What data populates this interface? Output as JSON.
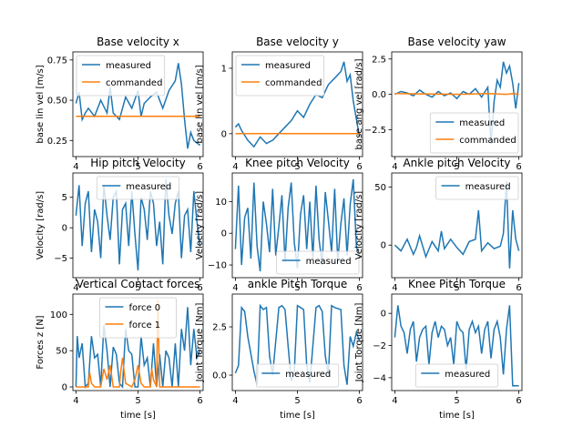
{
  "chart_data": [
    {
      "type": "line",
      "title": "Base velocity x",
      "ylabel": "base lin vel [m/s]",
      "xlabel": "",
      "xlim": [
        3.95,
        6.05
      ],
      "ylim": [
        0.15,
        0.8
      ],
      "xticks": [
        4,
        5,
        6
      ],
      "yticks": [
        0.25,
        0.5,
        0.75
      ],
      "ytick_labels": [
        "0.25",
        "0.50",
        "0.75"
      ],
      "legend": "top-left",
      "series": [
        {
          "name": "measured",
          "color": "#1f77b4",
          "x": [
            4.0,
            4.05,
            4.1,
            4.15,
            4.2,
            4.3,
            4.4,
            4.5,
            4.55,
            4.6,
            4.7,
            4.8,
            4.9,
            5.0,
            5.05,
            5.1,
            5.2,
            5.3,
            5.4,
            5.5,
            5.6,
            5.65,
            5.7,
            5.75,
            5.8,
            5.85,
            5.9,
            6.0
          ],
          "y": [
            0.48,
            0.55,
            0.38,
            0.42,
            0.45,
            0.4,
            0.5,
            0.42,
            0.58,
            0.42,
            0.38,
            0.52,
            0.45,
            0.56,
            0.4,
            0.48,
            0.52,
            0.55,
            0.45,
            0.56,
            0.62,
            0.73,
            0.6,
            0.38,
            0.2,
            0.3,
            0.25,
            0.22
          ]
        },
        {
          "name": "commanded",
          "color": "#ff7f0e",
          "x": [
            4.0,
            6.0
          ],
          "y": [
            0.4,
            0.4
          ]
        }
      ]
    },
    {
      "type": "line",
      "title": "Base velocity y",
      "ylabel": "base lin vel [m/s]",
      "xlabel": "",
      "xlim": [
        3.95,
        6.05
      ],
      "ylim": [
        -0.35,
        1.25
      ],
      "xticks": [
        4,
        5,
        6
      ],
      "yticks": [
        0,
        1
      ],
      "ytick_labels": [
        "0",
        "1"
      ],
      "legend": "top-left",
      "series": [
        {
          "name": "measured",
          "color": "#1f77b4",
          "x": [
            4.0,
            4.05,
            4.1,
            4.2,
            4.3,
            4.4,
            4.5,
            4.6,
            4.7,
            4.8,
            4.9,
            5.0,
            5.1,
            5.2,
            5.3,
            5.4,
            5.5,
            5.6,
            5.7,
            5.75,
            5.8,
            5.85,
            5.9,
            6.0
          ],
          "y": [
            0.1,
            0.15,
            0.05,
            -0.1,
            -0.2,
            -0.05,
            -0.15,
            -0.1,
            0.0,
            0.1,
            0.2,
            0.35,
            0.25,
            0.45,
            0.6,
            0.55,
            0.75,
            0.85,
            0.95,
            1.1,
            0.8,
            0.9,
            0.5,
            -0.05
          ]
        },
        {
          "name": "commanded",
          "color": "#ff7f0e",
          "x": [
            4.0,
            6.0
          ],
          "y": [
            0.0,
            0.0
          ]
        }
      ]
    },
    {
      "type": "line",
      "title": "Base velocity yaw",
      "ylabel": "base ang vel [rad/s]",
      "xlabel": "",
      "xlim": [
        3.95,
        6.05
      ],
      "ylim": [
        -4.4,
        3.0
      ],
      "xticks": [
        4,
        5,
        6
      ],
      "yticks": [
        -2.5,
        0.0,
        2.5
      ],
      "ytick_labels": [
        "−2.5",
        "0.0",
        "2.5"
      ],
      "legend": "bottom-right",
      "series": [
        {
          "name": "measured",
          "color": "#1f77b4",
          "x": [
            4.0,
            4.1,
            4.2,
            4.3,
            4.4,
            4.5,
            4.6,
            4.7,
            4.8,
            4.9,
            5.0,
            5.1,
            5.2,
            5.3,
            5.4,
            5.5,
            5.55,
            5.6,
            5.65,
            5.7,
            5.75,
            5.8,
            5.85,
            5.9,
            5.95,
            6.0
          ],
          "y": [
            0.0,
            0.2,
            0.1,
            -0.1,
            0.3,
            0.0,
            -0.2,
            0.2,
            -0.1,
            0.1,
            -0.3,
            0.2,
            0.0,
            0.4,
            -0.2,
            0.5,
            -3.5,
            -0.5,
            1.0,
            0.5,
            2.3,
            1.5,
            2.0,
            0.8,
            -1.0,
            0.8
          ]
        },
        {
          "name": "commanded",
          "color": "#ff7f0e",
          "x": [
            4.0,
            5.0,
            5.5,
            5.8,
            5.9,
            6.0
          ],
          "y": [
            0.05,
            0.0,
            0.05,
            0.0,
            0.05,
            0.0
          ]
        }
      ]
    },
    {
      "type": "line",
      "title": "Hip pitch Velocity",
      "ylabel": "Velocity [rad/s]",
      "xlabel": "",
      "xlim": [
        3.95,
        6.05
      ],
      "ylim": [
        -8.2,
        9.0
      ],
      "xticks": [
        4,
        5,
        6
      ],
      "yticks": [
        -5,
        0,
        5
      ],
      "ytick_labels": [
        "−5",
        "0",
        "5"
      ],
      "legend": "top-center",
      "series": [
        {
          "name": "measured",
          "color": "#1f77b4",
          "x": [
            4.0,
            4.05,
            4.1,
            4.15,
            4.2,
            4.25,
            4.3,
            4.35,
            4.4,
            4.45,
            4.5,
            4.55,
            4.6,
            4.65,
            4.7,
            4.75,
            4.8,
            4.85,
            4.9,
            4.95,
            5.0,
            5.05,
            5.1,
            5.15,
            5.2,
            5.25,
            5.3,
            5.35,
            5.4,
            5.45,
            5.5,
            5.55,
            5.6,
            5.65,
            5.7,
            5.75,
            5.8,
            5.85,
            5.9,
            5.95,
            6.0
          ],
          "y": [
            2,
            7,
            -3,
            4,
            6,
            -4,
            3,
            1,
            -5,
            7,
            2,
            -2,
            5,
            6,
            -6,
            3,
            4,
            -3,
            6,
            -1,
            -7,
            5,
            3,
            -2,
            6,
            4,
            -3,
            1,
            -6,
            8,
            2,
            -1,
            4,
            6,
            -5,
            2,
            3,
            -4,
            6,
            1,
            -3
          ]
        }
      ]
    },
    {
      "type": "line",
      "title": "Knee pitch Velocity",
      "ylabel": "Velocity [rad/s]",
      "xlabel": "",
      "xlim": [
        3.95,
        6.05
      ],
      "ylim": [
        -14.0,
        19.0
      ],
      "xticks": [
        4,
        5,
        6
      ],
      "yticks": [
        -10,
        0,
        10
      ],
      "ytick_labels": [
        "−10",
        "0",
        "10"
      ],
      "legend": "bottom-right",
      "series": [
        {
          "name": "measured",
          "color": "#1f77b4",
          "x": [
            4.0,
            4.05,
            4.1,
            4.15,
            4.2,
            4.25,
            4.3,
            4.35,
            4.4,
            4.45,
            4.5,
            4.55,
            4.6,
            4.65,
            4.7,
            4.75,
            4.8,
            4.85,
            4.9,
            4.95,
            5.0,
            5.05,
            5.1,
            5.15,
            5.2,
            5.25,
            5.3,
            5.35,
            5.4,
            5.45,
            5.5,
            5.55,
            5.6,
            5.65,
            5.7,
            5.75,
            5.8,
            5.85,
            5.9,
            5.95,
            6.0
          ],
          "y": [
            -5,
            15,
            -10,
            5,
            8,
            -8,
            16,
            -4,
            -12,
            10,
            3,
            -6,
            14,
            -7,
            2,
            12,
            -9,
            8,
            16,
            -3,
            -11,
            6,
            12,
            -5,
            10,
            -8,
            15,
            -2,
            -10,
            13,
            4,
            -6,
            14,
            -9,
            3,
            11,
            -7,
            9,
            17,
            -4,
            -8
          ]
        }
      ]
    },
    {
      "type": "line",
      "title": "Ankle pitch Velocity",
      "ylabel": "Velocity [rad/s]",
      "xlabel": "",
      "xlim": [
        3.95,
        6.05
      ],
      "ylim": [
        -28.0,
        62.0
      ],
      "xticks": [
        4,
        5,
        6
      ],
      "yticks": [
        0,
        50
      ],
      "ytick_labels": [
        "0",
        "50"
      ],
      "legend": "top-right",
      "series": [
        {
          "name": "measured",
          "color": "#1f77b4",
          "x": [
            4.0,
            4.1,
            4.2,
            4.3,
            4.35,
            4.4,
            4.5,
            4.6,
            4.7,
            4.75,
            4.8,
            4.9,
            5.0,
            5.1,
            5.2,
            5.3,
            5.35,
            5.4,
            5.5,
            5.6,
            5.7,
            5.75,
            5.8,
            5.85,
            5.9,
            5.95,
            6.0
          ],
          "y": [
            0,
            -5,
            5,
            -8,
            -2,
            8,
            -10,
            3,
            -5,
            12,
            -3,
            5,
            -2,
            -8,
            3,
            5,
            30,
            -5,
            2,
            -3,
            -1,
            10,
            55,
            -20,
            30,
            5,
            -5
          ]
        }
      ]
    },
    {
      "type": "line",
      "title": "Vertical Contact forces",
      "ylabel": "Forces z [N]",
      "xlabel": "time [s]",
      "xlim": [
        3.95,
        6.05
      ],
      "ylim": [
        -5.0,
        128.0
      ],
      "xticks": [
        4,
        5,
        6
      ],
      "yticks": [
        0,
        50,
        100
      ],
      "ytick_labels": [
        "0",
        "50",
        "100"
      ],
      "legend": "top-center",
      "series": [
        {
          "name": "force 0",
          "color": "#1f77b4",
          "x": [
            4.0,
            4.02,
            4.05,
            4.1,
            4.15,
            4.2,
            4.25,
            4.3,
            4.35,
            4.4,
            4.45,
            4.5,
            4.55,
            4.6,
            4.65,
            4.7,
            4.75,
            4.8,
            4.85,
            4.9,
            4.95,
            5.0,
            5.05,
            5.1,
            5.15,
            5.2,
            5.25,
            5.3,
            5.35,
            5.4,
            5.45,
            5.5,
            5.55,
            5.6,
            5.65,
            5.7,
            5.75,
            5.8,
            5.85,
            5.9,
            5.95,
            6.0
          ],
          "y": [
            0,
            70,
            40,
            60,
            0,
            5,
            70,
            40,
            45,
            0,
            85,
            50,
            0,
            55,
            45,
            5,
            0,
            80,
            50,
            45,
            0,
            0,
            70,
            30,
            40,
            0,
            60,
            0,
            45,
            0,
            50,
            40,
            0,
            60,
            0,
            80,
            50,
            110,
            30,
            80,
            40,
            50
          ]
        },
        {
          "name": "force 1",
          "color": "#ff7f0e",
          "x": [
            4.0,
            4.1,
            4.2,
            4.22,
            4.25,
            4.3,
            4.4,
            4.45,
            4.5,
            4.55,
            4.6,
            4.7,
            4.72,
            4.75,
            4.8,
            4.9,
            4.95,
            5.0,
            5.05,
            5.1,
            5.2,
            5.22,
            5.25,
            5.3,
            5.32,
            5.35,
            5.4,
            5.5,
            5.6,
            5.7,
            5.8,
            6.0
          ],
          "y": [
            0,
            0,
            0,
            20,
            5,
            0,
            0,
            25,
            10,
            30,
            0,
            0,
            20,
            40,
            5,
            0,
            10,
            30,
            5,
            0,
            0,
            25,
            10,
            0,
            120,
            0,
            0,
            0,
            0,
            0,
            0,
            0
          ]
        }
      ]
    },
    {
      "type": "line",
      "title": "ankle Pitch Torque",
      "ylabel": "Joint Torque [Nm]",
      "xlabel": "time [s]",
      "xlim": [
        3.95,
        6.05
      ],
      "ylim": [
        -0.8,
        4.2
      ],
      "xticks": [
        4,
        5,
        6
      ],
      "yticks": [
        0.0,
        2.5
      ],
      "ytick_labels": [
        "0.0",
        "2.5"
      ],
      "legend": "bottom-center",
      "series": [
        {
          "name": "measured",
          "color": "#1f77b4",
          "x": [
            4.0,
            4.05,
            4.1,
            4.15,
            4.2,
            4.3,
            4.35,
            4.4,
            4.45,
            4.5,
            4.55,
            4.6,
            4.7,
            4.75,
            4.8,
            4.85,
            4.9,
            4.95,
            5.0,
            5.05,
            5.1,
            5.15,
            5.2,
            5.3,
            5.35,
            5.4,
            5.45,
            5.5,
            5.55,
            5.6,
            5.7,
            5.75,
            5.8,
            5.85,
            5.9,
            5.95,
            6.0
          ],
          "y": [
            0.1,
            0.5,
            3.5,
            3.3,
            2.0,
            0.2,
            -0.5,
            3.6,
            3.4,
            3.5,
            1.0,
            0.0,
            3.5,
            3.6,
            3.4,
            1.5,
            -0.3,
            0.2,
            3.6,
            3.5,
            3.4,
            0.5,
            -0.4,
            3.5,
            3.6,
            3.3,
            1.0,
            0.0,
            3.6,
            3.5,
            3.4,
            0.5,
            -0.5,
            2.0,
            1.5,
            2.2,
            1.8
          ]
        }
      ]
    },
    {
      "type": "line",
      "title": "Knee Pitch Torque",
      "ylabel": "Joint Torque [Nm]",
      "xlabel": "time [s]",
      "xlim": [
        3.95,
        6.05
      ],
      "ylim": [
        -4.8,
        1.2
      ],
      "xticks": [
        4,
        5,
        6
      ],
      "yticks": [
        -4,
        -2,
        0
      ],
      "ytick_labels": [
        "−4",
        "−2",
        "0"
      ],
      "legend": "bottom-center",
      "series": [
        {
          "name": "measured",
          "color": "#1f77b4",
          "x": [
            4.0,
            4.05,
            4.1,
            4.15,
            4.2,
            4.25,
            4.3,
            4.35,
            4.4,
            4.45,
            4.5,
            4.55,
            4.6,
            4.65,
            4.7,
            4.75,
            4.8,
            4.85,
            4.9,
            4.95,
            5.0,
            5.05,
            5.1,
            5.15,
            5.2,
            5.25,
            5.3,
            5.35,
            5.4,
            5.45,
            5.5,
            5.55,
            5.6,
            5.65,
            5.7,
            5.75,
            5.8,
            5.85,
            5.9,
            6.0
          ],
          "y": [
            -1.5,
            0.5,
            -0.8,
            -1.2,
            -2.5,
            -1.0,
            -0.5,
            -3.0,
            -1.5,
            -1.0,
            -0.8,
            -3.2,
            -1.2,
            -0.5,
            -1.5,
            -0.8,
            -1.0,
            -2.0,
            -1.5,
            -3.2,
            -0.5,
            -1.0,
            -1.2,
            -3.5,
            -1.0,
            -0.5,
            -1.2,
            -0.8,
            -2.5,
            -1.0,
            -0.5,
            -2.8,
            -1.0,
            -0.5,
            -1.5,
            -3.8,
            -1.0,
            0.5,
            -4.5,
            -4.5
          ]
        }
      ]
    }
  ]
}
